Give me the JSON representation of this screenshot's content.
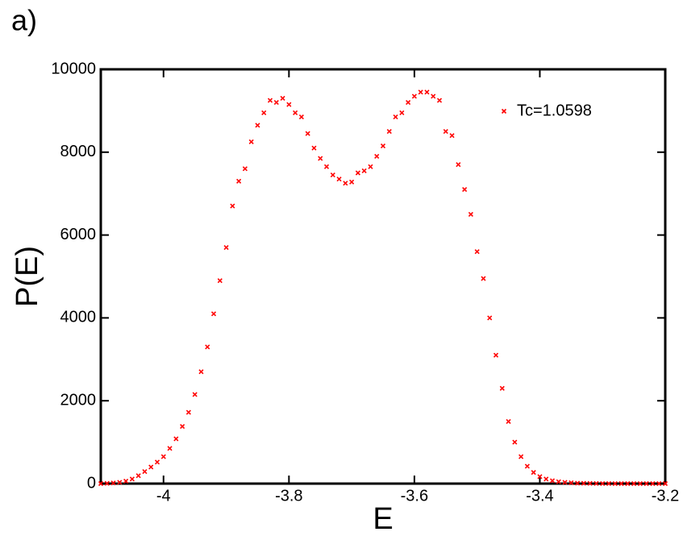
{
  "chart_data": {
    "type": "scatter",
    "panel_label": "a)",
    "xlabel": "E",
    "ylabel": "P(E)",
    "xlim": [
      -4.1,
      -3.2
    ],
    "xticks": [
      -4,
      -3.8,
      -3.6,
      -3.4,
      -3.2
    ],
    "ylim": [
      0,
      10000
    ],
    "yticks": [
      0,
      2000,
      4000,
      6000,
      8000,
      10000
    ],
    "legend": "upper right",
    "series": [
      {
        "name": "Tc=1.0598",
        "color": "#ff0000",
        "x": [
          -4.1,
          -4.09,
          -4.08,
          -4.07,
          -4.06,
          -4.05,
          -4.04,
          -4.03,
          -4.02,
          -4.01,
          -4.0,
          -3.99,
          -3.98,
          -3.97,
          -3.96,
          -3.95,
          -3.94,
          -3.93,
          -3.92,
          -3.91,
          -3.9,
          -3.89,
          -3.88,
          -3.87,
          -3.86,
          -3.85,
          -3.84,
          -3.83,
          -3.82,
          -3.81,
          -3.8,
          -3.79,
          -3.78,
          -3.77,
          -3.76,
          -3.75,
          -3.74,
          -3.73,
          -3.72,
          -3.71,
          -3.7,
          -3.69,
          -3.68,
          -3.67,
          -3.66,
          -3.65,
          -3.64,
          -3.63,
          -3.62,
          -3.61,
          -3.6,
          -3.59,
          -3.58,
          -3.57,
          -3.56,
          -3.55,
          -3.54,
          -3.53,
          -3.52,
          -3.51,
          -3.5,
          -3.49,
          -3.48,
          -3.47,
          -3.46,
          -3.45,
          -3.44,
          -3.43,
          -3.42,
          -3.41,
          -3.4,
          -3.39,
          -3.38,
          -3.37,
          -3.36,
          -3.35,
          -3.34,
          -3.33,
          -3.32,
          -3.31,
          -3.3,
          -3.29,
          -3.28,
          -3.27,
          -3.26,
          -3.25,
          -3.24,
          -3.23,
          -3.22,
          -3.21,
          -3.2
        ],
        "values": [
          0,
          5,
          15,
          30,
          60,
          110,
          190,
          290,
          400,
          520,
          650,
          850,
          1080,
          1380,
          1720,
          2150,
          2700,
          3300,
          4100,
          4900,
          5700,
          6700,
          7300,
          7600,
          8250,
          8650,
          8950,
          9250,
          9200,
          9300,
          9150,
          8950,
          8850,
          8450,
          8100,
          7850,
          7650,
          7450,
          7350,
          7250,
          7280,
          7500,
          7550,
          7650,
          7900,
          8150,
          8500,
          8850,
          8950,
          9200,
          9350,
          9450,
          9450,
          9350,
          9250,
          8500,
          8400,
          7700,
          7100,
          6500,
          5600,
          4950,
          4000,
          3100,
          2300,
          1500,
          1000,
          650,
          420,
          270,
          170,
          110,
          70,
          45,
          30,
          20,
          12,
          8,
          5,
          3,
          2,
          1,
          0,
          0,
          0,
          0,
          0,
          0,
          0,
          0,
          0
        ]
      }
    ]
  }
}
